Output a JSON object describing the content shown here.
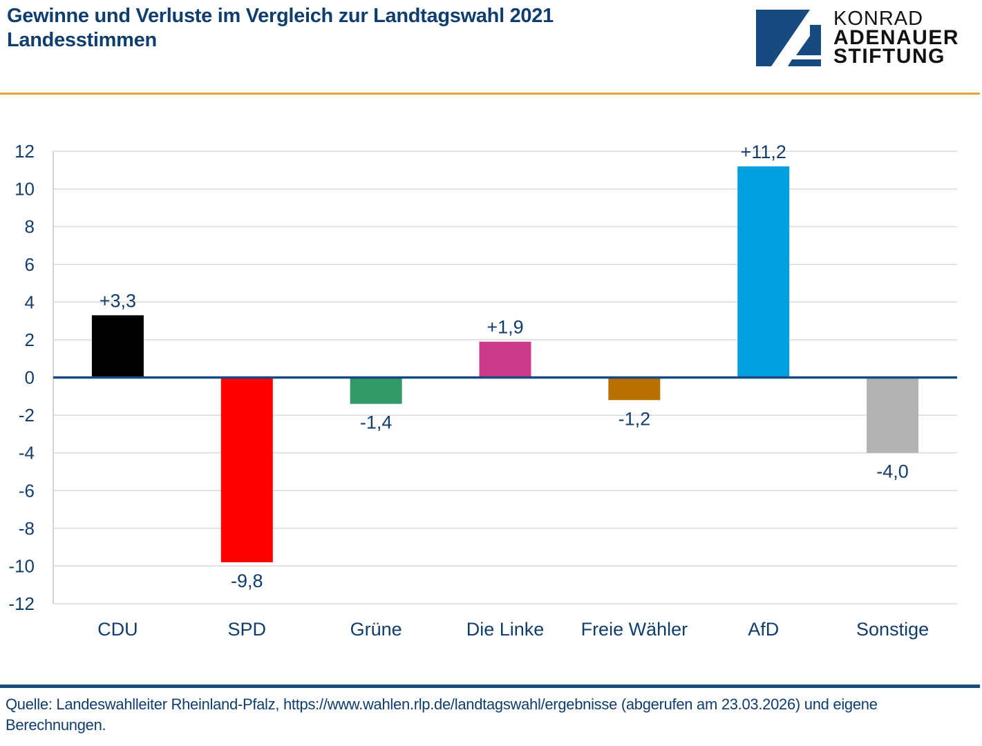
{
  "header": {
    "title_line1": "Gewinne und Verluste im Vergleich zur Landtagswahl 2021",
    "title_line2": "Landesstimmen"
  },
  "logo": {
    "line1": "KONRAD",
    "line2": "ADENAUER",
    "line3": "STIFTUNG",
    "color": "#174b80"
  },
  "footer": {
    "source": "Quelle: Landeswahlleiter Rheinland-Pfalz, https://www.wahlen.rlp.de/landtagswahl/ergebnisse (abgerufen am 23.03.2026) und eigene Berechnungen."
  },
  "chart_data": {
    "type": "bar",
    "title": "Gewinne und Verluste im Vergleich zur Landtagswahl 2021 — Landesstimmen",
    "xlabel": "",
    "ylabel": "",
    "categories": [
      "CDU",
      "SPD",
      "Grüne",
      "Die Linke",
      "Freie Wähler",
      "AfD",
      "Sonstige"
    ],
    "values": [
      3.3,
      -9.8,
      -1.4,
      1.9,
      -1.2,
      11.2,
      -4.0
    ],
    "data_labels": [
      "+3,3",
      "-9,8",
      "-1,4",
      "+1,9",
      "-1,2",
      "+11,2",
      "-4,0"
    ],
    "colors": [
      "#000000",
      "#ff0000",
      "#339966",
      "#cc3a8c",
      "#b87000",
      "#009fe0",
      "#b3b3b3"
    ],
    "ylim": [
      -12,
      12
    ],
    "yticks": [
      12,
      10,
      8,
      6,
      4,
      2,
      0,
      -2,
      -4,
      -6,
      -8,
      -10,
      -12
    ],
    "grid": true,
    "legend": "none"
  }
}
